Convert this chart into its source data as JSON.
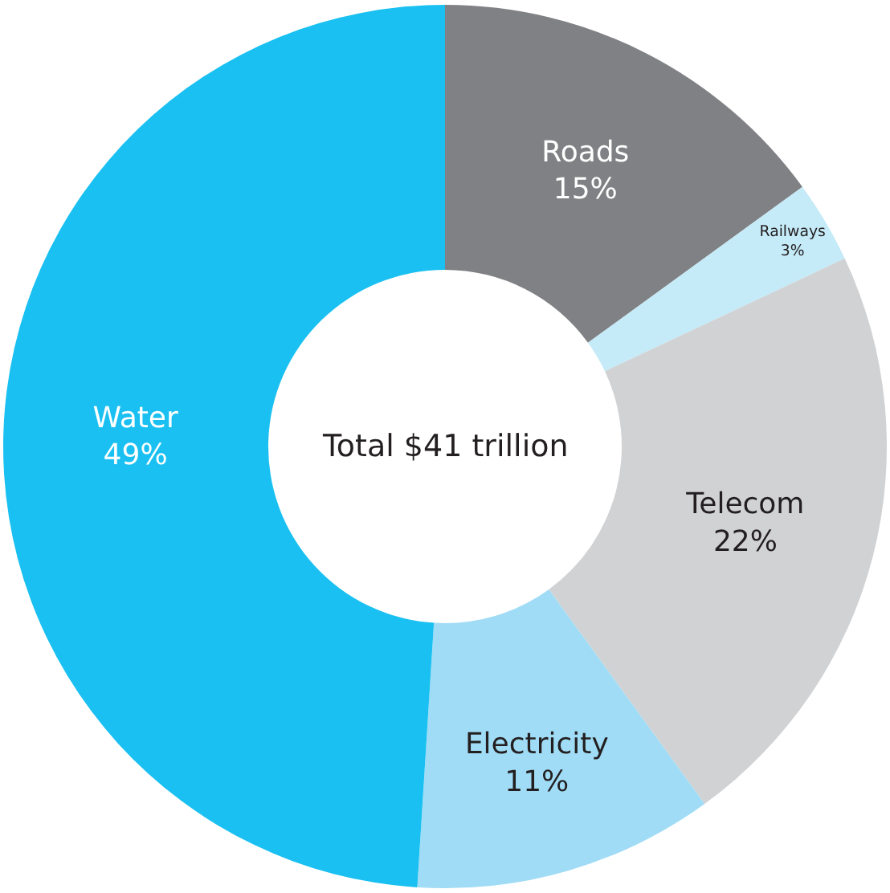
{
  "chart_data": {
    "type": "donut",
    "categories": [
      "Roads",
      "Railways",
      "Telecom",
      "Electricity",
      "Water"
    ],
    "values": [
      15,
      3,
      22,
      11,
      49
    ],
    "value_labels": [
      "15%",
      "3%",
      "22%",
      "11%",
      "49%"
    ],
    "colors": [
      "#808184",
      "#c5eaf8",
      "#d1d2d4",
      "#a0dcf6",
      "#19c0f1"
    ],
    "annotations": [
      "Total $41 trillion"
    ],
    "legend": false
  }
}
